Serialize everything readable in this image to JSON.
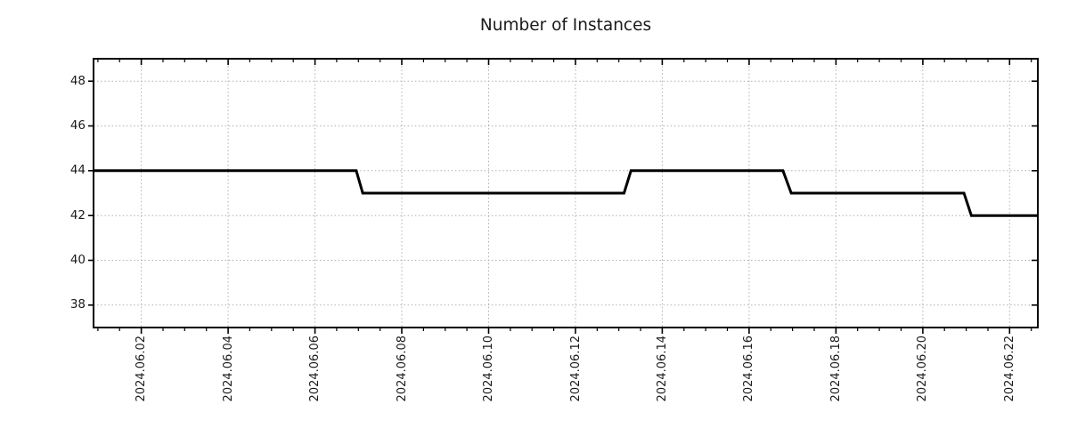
{
  "chart_data": {
    "type": "line",
    "subtype": "step-line-timeseries",
    "title": "Number of Instances",
    "xlabel": "",
    "ylabel": "",
    "legend": "none",
    "grid": {
      "on": true,
      "style": "dotted",
      "color": "#b0b0b0"
    },
    "x_axis": {
      "tick_labels": [
        "2024.06.02",
        "2024.06.04",
        "2024.06.06",
        "2024.06.08",
        "2024.06.10",
        "2024.06.12",
        "2024.06.14",
        "2024.06.16",
        "2024.06.18",
        "2024.06.20",
        "2024.06.22"
      ],
      "tick_days": [
        2,
        4,
        6,
        8,
        10,
        12,
        14,
        16,
        18,
        20,
        22
      ],
      "minor_tick_interval_days": 0.5,
      "xlim_days": [
        0.9,
        22.65
      ]
    },
    "y_axis": {
      "tick_labels": [
        "38",
        "40",
        "42",
        "44",
        "46",
        "48"
      ],
      "tick_values": [
        38,
        40,
        42,
        44,
        46,
        48
      ],
      "ylim": [
        37,
        49
      ]
    },
    "series": [
      {
        "name": "instances",
        "color": "#000000",
        "line_width": 3,
        "points_day_value": [
          [
            0.9,
            44
          ],
          [
            6.95,
            44
          ],
          [
            7.1,
            43
          ],
          [
            13.12,
            43
          ],
          [
            13.28,
            44
          ],
          [
            16.78,
            44
          ],
          [
            16.97,
            43
          ],
          [
            20.95,
            43
          ],
          [
            21.12,
            42
          ],
          [
            22.65,
            42
          ]
        ]
      }
    ]
  },
  "colors": {
    "background": "#ffffff",
    "axis": "#000000",
    "grid": "#b0b0b0",
    "text": "#1a1a1a",
    "line": "#000000"
  }
}
